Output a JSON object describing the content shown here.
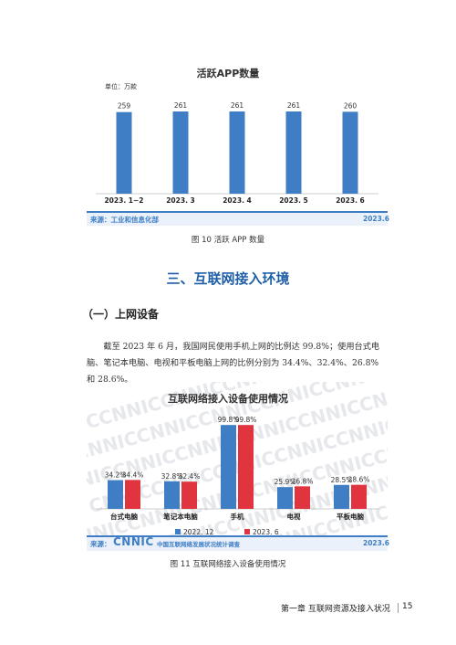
{
  "chart1": {
    "title": "活跃APP数量",
    "unit": "单位：万款",
    "source": "来源：工业和信息化部",
    "date": "2023.6",
    "caption": "图 10  活跃 APP 数量",
    "color": "#3f7ec4"
  },
  "section": {
    "title": "三、互联网接入环境"
  },
  "subsection": {
    "title": "（一）上网设备"
  },
  "paragraph": "截至 2023 年 6 月，我国网民使用手机上网的比例达 99.8%；使用台式电脑、笔记本电脑、电视和平板电脑上网的比例分别为 34.4%、32.4%、26.8% 和 28.6%。",
  "chart2": {
    "title": "互联网络接入设备使用情况",
    "watermark": "CNNIC",
    "source_prefix": "来源：",
    "source_logo": "CNNIC",
    "source_name": "中国互联网络发展状况统计调查",
    "date": "2023.6",
    "caption": "图 11  互联网络接入设备使用情况",
    "colors": [
      "#3f7ec4",
      "#e0343f"
    ]
  },
  "footer": {
    "text": "第一章  互联网资源及接入状况",
    "page": "15"
  },
  "chart_data": [
    {
      "type": "bar",
      "title": "活跃APP数量",
      "ylabel": "单位：万款",
      "categories": [
        "2023. 1−2",
        "2023. 3",
        "2023. 4",
        "2023. 5",
        "2023. 6"
      ],
      "values": [
        259,
        261,
        261,
        261,
        260
      ],
      "labels": [
        "259",
        "261",
        "261",
        "261",
        "260"
      ],
      "ylim": [
        0,
        290
      ],
      "grid": false
    },
    {
      "type": "bar",
      "title": "互联网络接入设备使用情况",
      "categories": [
        "台式电脑",
        "笔记本电脑",
        "手机",
        "电视",
        "平板电脑"
      ],
      "series": [
        {
          "name": "2022. 12",
          "values": [
            34.2,
            32.8,
            99.8,
            25.9,
            28.5
          ],
          "labels": [
            "34.2%",
            "32.8%",
            "99.8%",
            "25.9%",
            "28.5%"
          ]
        },
        {
          "name": "2023. 6",
          "values": [
            34.4,
            32.4,
            99.8,
            26.8,
            28.6
          ],
          "labels": [
            "34.4%",
            "32.4%",
            "99.8%",
            "26.8%",
            "28.6%"
          ]
        }
      ],
      "ylim": [
        0,
        100
      ],
      "legend": "bottom",
      "grid": false
    }
  ]
}
